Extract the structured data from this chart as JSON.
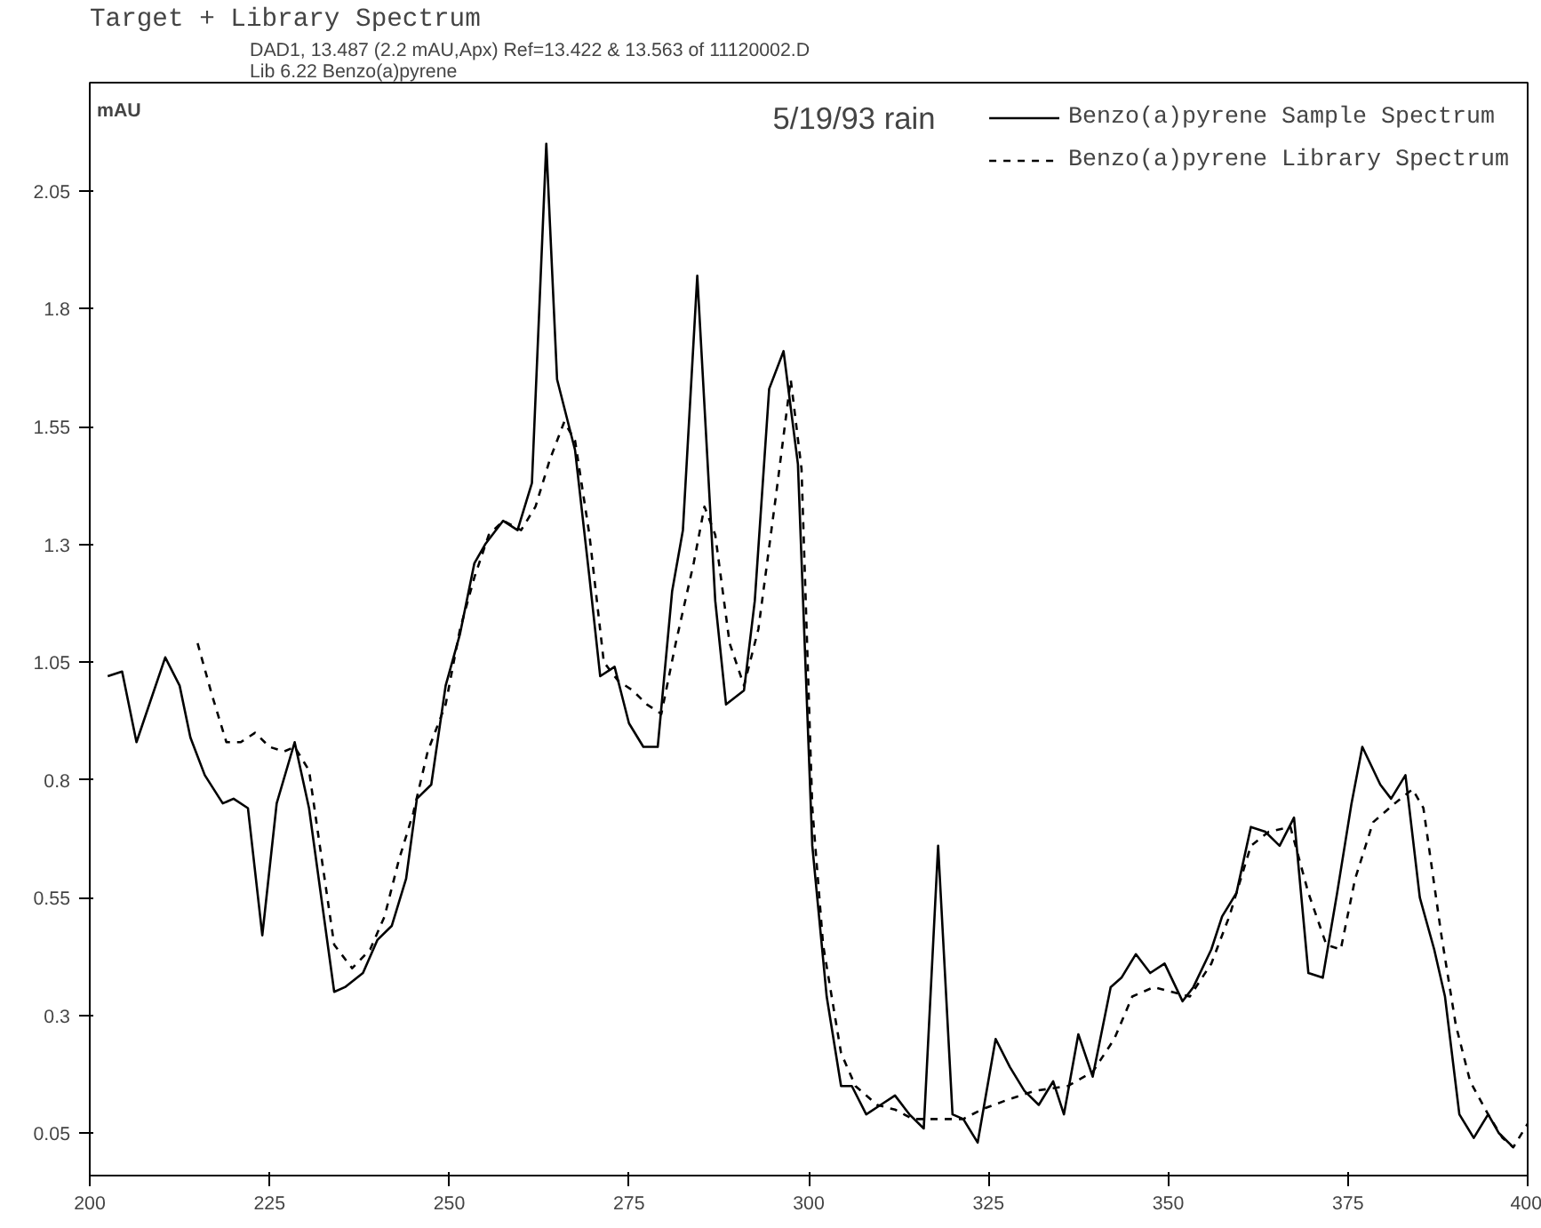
{
  "chart_data": {
    "type": "line",
    "title": "Target + Library Spectrum",
    "subtitle": "DAD1, 13.487 (2.2 mAU,Apx) Ref=13.422 & 13.563 of 11120002.D\nLib 6.22 Benzo(a)pyrene",
    "ylabel": "mAU",
    "annotations": [
      "5/19/93 rain"
    ],
    "xlim": [
      200,
      400
    ],
    "xticks": [
      200,
      225,
      250,
      275,
      300,
      325,
      350,
      375,
      400
    ],
    "ylim": [
      -0.04,
      2.28
    ],
    "yticks": [
      0.05,
      0.3,
      0.55,
      0.8,
      1.05,
      1.3,
      1.55,
      1.8,
      2.05
    ],
    "grid": false,
    "legend": "top right",
    "series": [
      {
        "name": "Benzo(a)pyrene Sample Spectrum",
        "color": "#000000",
        "line_style": "solid",
        "x": [
          202.5,
          204.5,
          206.5,
          210.5,
          212.5,
          214,
          216,
          218.5,
          220,
          222,
          224,
          226,
          228.5,
          230.5,
          234,
          235.5,
          238,
          240,
          242,
          244,
          245.5,
          247.5,
          249.5,
          251.5,
          253.5,
          255,
          257.5,
          259.5,
          261.5,
          263.5,
          265,
          267.5,
          269.5,
          271,
          273,
          275,
          277,
          279,
          281,
          282.5,
          284.5,
          287,
          288.5,
          291,
          292.5,
          294.5,
          296.5,
          298.5,
          300.5,
          302.5,
          304.5,
          306,
          308,
          310,
          312,
          314,
          316,
          318,
          320,
          321.5,
          323.5,
          326,
          328,
          330,
          332,
          334,
          335.5,
          337.5,
          339.5,
          342,
          343.5,
          345.5,
          347.5,
          349.5,
          352,
          353.5,
          356,
          357.5,
          359.5,
          361.5,
          363.5,
          365.5,
          367.5,
          369.5,
          371.5,
          373.5,
          375.5,
          377,
          379.5,
          381,
          383,
          385,
          387,
          388.5,
          390.5,
          392.5,
          394.5,
          396,
          398
        ],
        "values": [
          1.02,
          1.03,
          0.88,
          1.06,
          1.0,
          0.89,
          0.81,
          0.75,
          0.76,
          0.74,
          0.47,
          0.75,
          0.88,
          0.74,
          0.35,
          0.36,
          0.39,
          0.46,
          0.49,
          0.59,
          0.76,
          0.79,
          1.0,
          1.11,
          1.26,
          1.3,
          1.35,
          1.33,
          1.43,
          2.15,
          1.65,
          1.5,
          1.23,
          1.02,
          1.04,
          0.92,
          0.87,
          0.87,
          1.2,
          1.33,
          1.87,
          1.18,
          0.96,
          0.99,
          1.18,
          1.63,
          1.71,
          1.47,
          0.66,
          0.34,
          0.15,
          0.15,
          0.09,
          0.11,
          0.13,
          0.09,
          0.06,
          0.66,
          0.09,
          0.08,
          0.03,
          0.25,
          0.19,
          0.14,
          0.11,
          0.16,
          0.09,
          0.26,
          0.17,
          0.36,
          0.38,
          0.43,
          0.39,
          0.41,
          0.33,
          0.36,
          0.44,
          0.51,
          0.56,
          0.7,
          0.69,
          0.66,
          0.72,
          0.39,
          0.38,
          0.56,
          0.75,
          0.87,
          0.79,
          0.76,
          0.81,
          0.55,
          0.44,
          0.34,
          0.09,
          0.04,
          0.09,
          0.05,
          0.02
        ]
      },
      {
        "name": "Benzo(a)pyrene Library Spectrum",
        "color": "#000000",
        "line_style": "dashed",
        "x": [
          215,
          217,
          219,
          221,
          223,
          225,
          227,
          228.5,
          230.5,
          232,
          234,
          236.5,
          239,
          241,
          243,
          245,
          247,
          249.5,
          251.5,
          253.5,
          255.5,
          257.5,
          260,
          262,
          264,
          266,
          267.5,
          269.5,
          271.5,
          273.5,
          275.5,
          277.5,
          279.5,
          281.5,
          284,
          285.5,
          287,
          289,
          291,
          293,
          295.5,
          297.5,
          299,
          300.5,
          302,
          304.5,
          306.5,
          309.5,
          312,
          314.5,
          317.5,
          321.5,
          324,
          327.5,
          331.5,
          336,
          339.5,
          342.5,
          345,
          348,
          350.5,
          353,
          356,
          358.5,
          361.5,
          364,
          367,
          369.5,
          372,
          374,
          376,
          378.5,
          381.5,
          384,
          385.5,
          388,
          390,
          392,
          394.5,
          396.5,
          398,
          400
        ],
        "values": [
          1.09,
          0.98,
          0.88,
          0.88,
          0.9,
          0.87,
          0.86,
          0.87,
          0.82,
          0.66,
          0.45,
          0.4,
          0.44,
          0.51,
          0.63,
          0.73,
          0.86,
          0.96,
          1.12,
          1.23,
          1.32,
          1.35,
          1.33,
          1.38,
          1.48,
          1.56,
          1.52,
          1.32,
          1.05,
          1.01,
          0.99,
          0.96,
          0.94,
          1.09,
          1.26,
          1.38,
          1.32,
          1.09,
          1.0,
          1.12,
          1.41,
          1.65,
          1.46,
          0.74,
          0.45,
          0.22,
          0.15,
          0.11,
          0.1,
          0.08,
          0.08,
          0.08,
          0.1,
          0.12,
          0.14,
          0.15,
          0.18,
          0.25,
          0.34,
          0.36,
          0.35,
          0.34,
          0.41,
          0.51,
          0.66,
          0.69,
          0.7,
          0.56,
          0.45,
          0.44,
          0.59,
          0.71,
          0.75,
          0.78,
          0.74,
          0.47,
          0.28,
          0.16,
          0.09,
          0.04,
          0.02,
          0.07
        ]
      }
    ]
  }
}
